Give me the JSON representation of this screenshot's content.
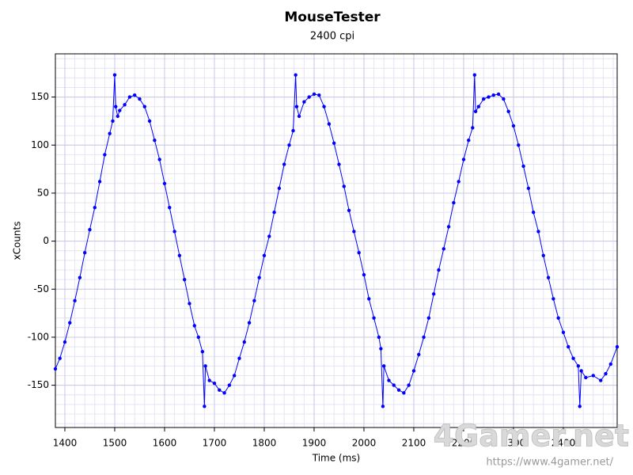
{
  "chart_data": {
    "type": "line",
    "title": "MouseTester",
    "subtitle": "2400 cpi",
    "xlabel": "Time (ms)",
    "ylabel": "xCounts",
    "watermark": "4Gamer.net",
    "watermark_url": "https://www.4gamer.net/",
    "xlim": [
      1381,
      2508
    ],
    "ylim": [
      -194,
      195
    ],
    "xticks": [
      1400,
      1500,
      1600,
      1700,
      1800,
      1900,
      2000,
      2100,
      2200,
      2300,
      2400
    ],
    "yticks": [
      -150,
      -100,
      -50,
      0,
      50,
      100,
      150
    ],
    "grid": true,
    "x_minor_step": 20,
    "y_minor_step": 10,
    "x": [
      1381,
      1390,
      1400,
      1410,
      1420,
      1430,
      1440,
      1450,
      1460,
      1470,
      1480,
      1490,
      1496,
      1500,
      1502,
      1506,
      1510,
      1520,
      1530,
      1540,
      1550,
      1560,
      1570,
      1580,
      1590,
      1600,
      1610,
      1620,
      1630,
      1640,
      1650,
      1660,
      1668,
      1676,
      1680,
      1682,
      1690,
      1700,
      1710,
      1720,
      1730,
      1740,
      1750,
      1760,
      1770,
      1780,
      1790,
      1800,
      1810,
      1820,
      1830,
      1840,
      1850,
      1858,
      1863,
      1865,
      1870,
      1880,
      1890,
      1900,
      1910,
      1920,
      1930,
      1940,
      1950,
      1960,
      1970,
      1980,
      1990,
      2000,
      2010,
      2020,
      2030,
      2034,
      2038,
      2040,
      2050,
      2060,
      2070,
      2080,
      2090,
      2100,
      2110,
      2120,
      2130,
      2140,
      2150,
      2160,
      2170,
      2180,
      2190,
      2200,
      2210,
      2218,
      2222,
      2224,
      2230,
      2240,
      2250,
      2260,
      2270,
      2280,
      2290,
      2300,
      2310,
      2320,
      2330,
      2340,
      2350,
      2360,
      2370,
      2380,
      2390,
      2400,
      2410,
      2420,
      2430,
      2433,
      2436,
      2445,
      2460,
      2475,
      2485,
      2495,
      2508
    ],
    "series": [
      {
        "name": "xCounts",
        "color": "#0000ff",
        "values": [
          -133,
          -122,
          -105,
          -85,
          -62,
          -38,
          -12,
          12,
          35,
          62,
          90,
          112,
          125,
          173,
          140,
          130,
          136,
          142,
          150,
          152,
          148,
          140,
          125,
          105,
          85,
          60,
          35,
          10,
          -15,
          -40,
          -65,
          -88,
          -100,
          -115,
          -172,
          -130,
          -145,
          -148,
          -155,
          -158,
          -150,
          -140,
          -122,
          -105,
          -85,
          -62,
          -38,
          -15,
          5,
          30,
          55,
          80,
          100,
          115,
          173,
          140,
          130,
          145,
          150,
          153,
          152,
          140,
          122,
          102,
          80,
          57,
          32,
          10,
          -12,
          -35,
          -60,
          -80,
          -100,
          -112,
          -172,
          -130,
          -145,
          -150,
          -155,
          -158,
          -150,
          -135,
          -118,
          -100,
          -80,
          -55,
          -30,
          -8,
          15,
          40,
          62,
          85,
          105,
          118,
          173,
          135,
          140,
          148,
          150,
          152,
          153,
          148,
          135,
          120,
          100,
          78,
          55,
          30,
          10,
          -15,
          -38,
          -60,
          -80,
          -95,
          -110,
          -122,
          -130,
          -172,
          -135,
          -142,
          -140,
          -145,
          -138,
          -128,
          -110
        ]
      }
    ]
  }
}
